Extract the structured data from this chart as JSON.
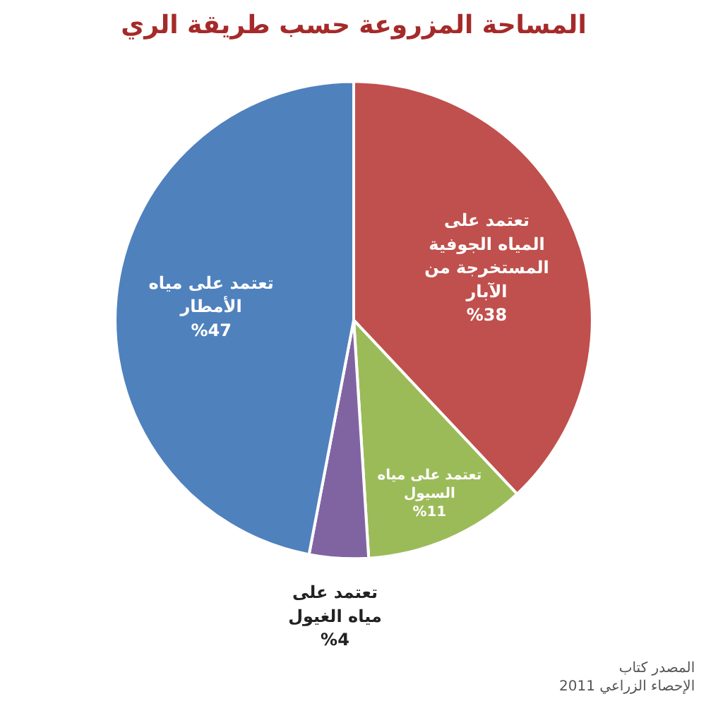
{
  "chart_data": {
    "type": "pie",
    "title": "المساحة المزروعة حسب طريقة الري",
    "categories": [
      "تعتمد على\nالمياه الجوفية\nالمستخرجة من\nالآبار",
      "تعتمد على مياه\nالسيول",
      "تعتمد على\nمياه الغيول",
      "تعتمد على مياه\nالأمطار"
    ],
    "values": [
      38,
      11,
      4,
      47
    ],
    "colors": [
      "#c0504d",
      "#9bbb59",
      "#8064a2",
      "#4f81bd"
    ],
    "value_labels": [
      "%38",
      "%11",
      "%4",
      "%47"
    ],
    "annotations": [
      "المصدر كتاب\nالإحصاء الزراعي 2011"
    ]
  }
}
